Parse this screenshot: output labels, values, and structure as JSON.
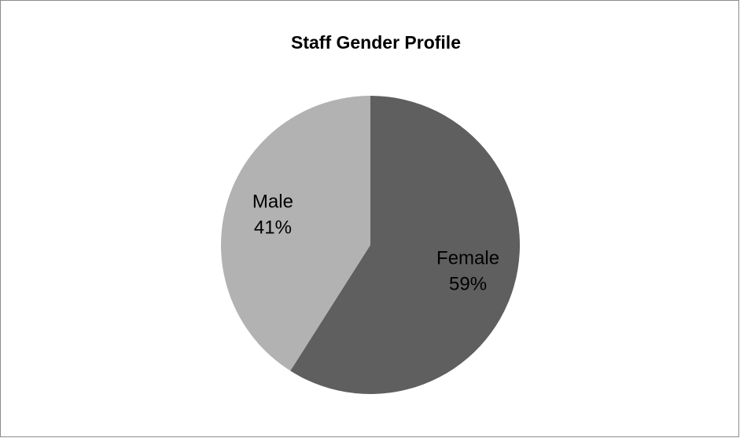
{
  "chart_data": {
    "type": "pie",
    "title": "Staff Gender Profile",
    "categories": [
      "Female",
      "Male"
    ],
    "values": [
      59,
      41
    ],
    "value_labels": [
      "59%",
      "41%"
    ],
    "colors": [
      "#5f5f5f",
      "#b2b2b2"
    ]
  }
}
